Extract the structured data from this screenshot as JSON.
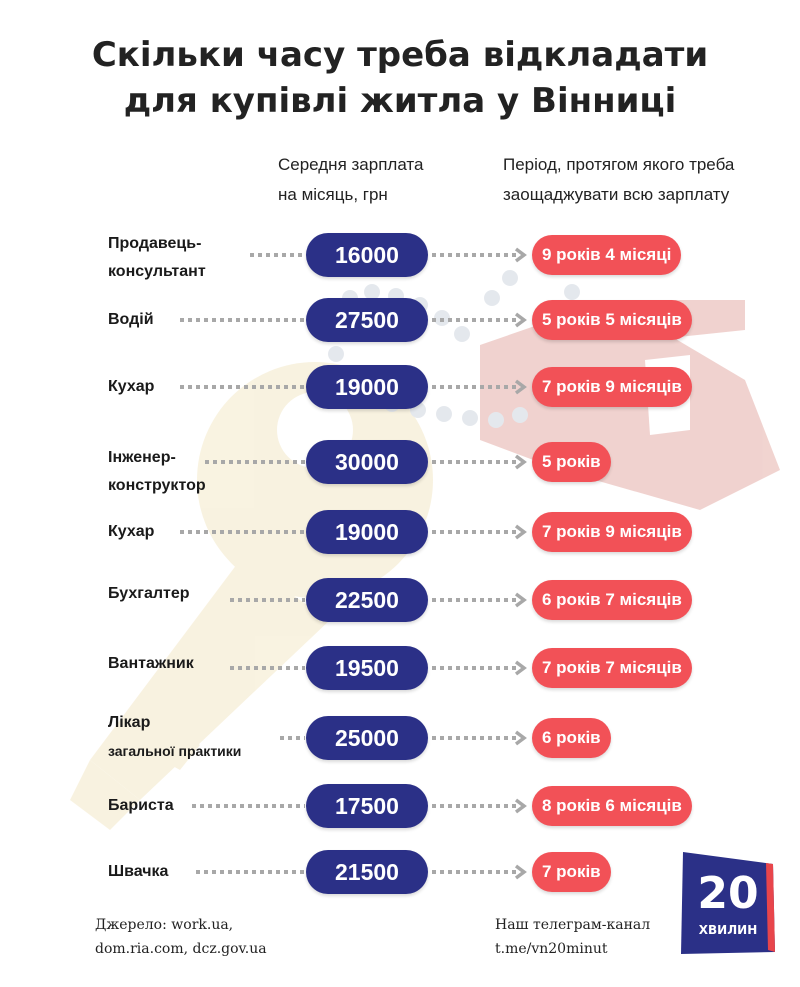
{
  "title_lines": [
    "Скільки часу треба відкладати",
    "для купівлі житла у Вінниці"
  ],
  "headers": {
    "salary": [
      "Середня зарплата",
      "на місяць, грн"
    ],
    "period": [
      "Період, протягом якого треба",
      "заощаджувати всю зарплату"
    ]
  },
  "chart_data": {
    "type": "table",
    "columns": [
      "Середня зарплата на місяць, грн",
      "Період, протягом якого треба заощаджувати всю зарплату"
    ],
    "rows": [
      {
        "profession": [
          "Продавець-",
          "консультант"
        ],
        "salary": "16000",
        "period": "9 років 4 місяці"
      },
      {
        "profession": [
          "Водій"
        ],
        "salary": "27500",
        "period": "5 років 5 місяців"
      },
      {
        "profession": [
          "Кухар"
        ],
        "salary": "19000",
        "period": "7 років 9 місяців"
      },
      {
        "profession": [
          "Інженер-",
          "конструктор"
        ],
        "salary": "30000",
        "period": "5 років"
      },
      {
        "profession": [
          "Кухар"
        ],
        "salary": "19000",
        "period": "7 років 9 місяців"
      },
      {
        "profession": [
          "Бухгалтер"
        ],
        "salary": "22500",
        "period": "6 років 7 місяців"
      },
      {
        "profession": [
          "Вантажник"
        ],
        "salary": "19500",
        "period": "7 років 7 місяців"
      },
      {
        "profession": [
          "Лікар",
          "загальної практики"
        ],
        "salary": "25000",
        "period": "6 років"
      },
      {
        "profession": [
          "Бариста"
        ],
        "salary": "17500",
        "period": "8 років 6 місяців"
      },
      {
        "profession": [
          "Швачка"
        ],
        "salary": "21500",
        "period": "7 років"
      }
    ]
  },
  "source": [
    "Джерело: work.ua,",
    "dom.ria.com, dcz.gov.ua"
  ],
  "telegram": [
    "Наш телеграм-канал",
    "t.me/vn20minut"
  ],
  "logo": {
    "number": "20",
    "word": "ХВИЛИН"
  },
  "colors": {
    "salary_pill": "#2b3087",
    "period_pill": "#f25157",
    "arrow": "#a8a8a8",
    "logo": "#2b3087",
    "logo_accent": "#e8454b"
  }
}
